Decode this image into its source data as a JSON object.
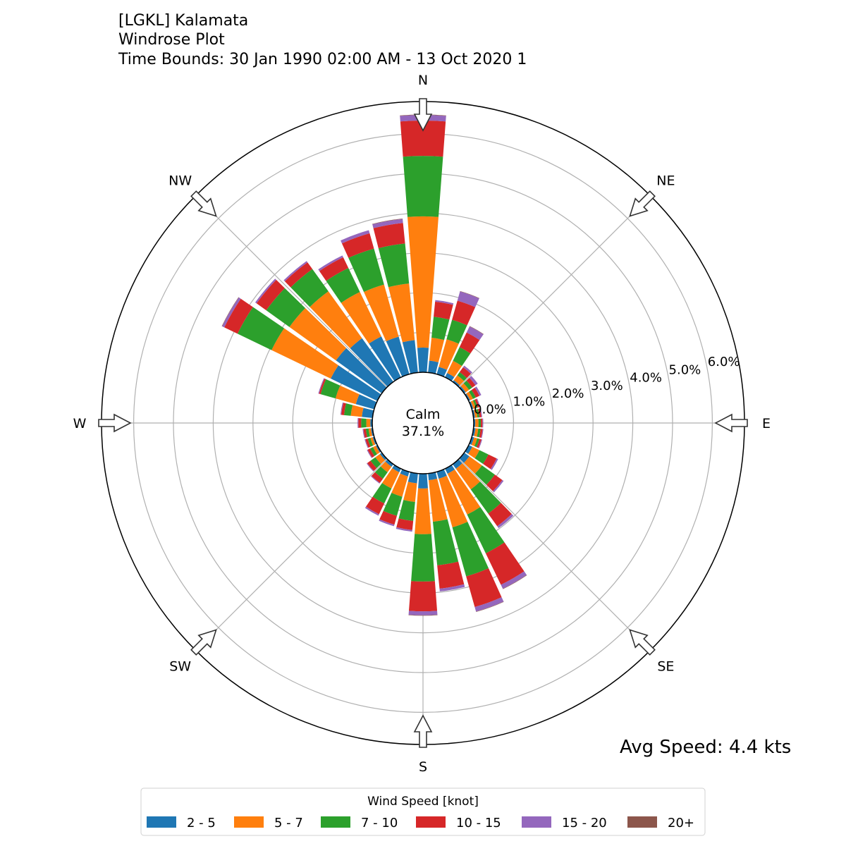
{
  "title": {
    "line1": "[LGKL] Kalamata",
    "line2": "Windrose Plot",
    "line3": "Time Bounds: 30 Jan 1990 02:00 AM - 13 Oct 2020 1"
  },
  "chart_data": {
    "type": "windrose",
    "title": "[LGKL] Kalamata Windrose Plot",
    "directions_deg": [
      0,
      10,
      20,
      30,
      40,
      50,
      60,
      70,
      80,
      90,
      100,
      110,
      120,
      130,
      140,
      150,
      160,
      170,
      180,
      190,
      200,
      210,
      220,
      230,
      240,
      250,
      260,
      270,
      280,
      290,
      300,
      310,
      320,
      330,
      340,
      350
    ],
    "direction_labels": [
      "N",
      "NE",
      "E",
      "SE",
      "S",
      "SW",
      "W",
      "NW"
    ],
    "radial_ticks": [
      "0.0%",
      "1.0%",
      "2.0%",
      "3.0%",
      "4.0%",
      "5.0%",
      "6.0%"
    ],
    "rlim": [
      0,
      6.5
    ],
    "units": "percent of observations",
    "calm_label": "Calm",
    "calm_value": "37.1%",
    "avg_speed": "Avg Speed: 4.4 kts",
    "legend_title": "Wind Speed [knot]",
    "legend_placement": "bottom-center",
    "series": [
      {
        "name": "2 - 5",
        "color": "#1f77b4",
        "values": [
          0.62,
          0.3,
          0.19,
          0.12,
          0.05,
          0.05,
          0.04,
          0.04,
          0.04,
          0.04,
          0.05,
          0.06,
          0.1,
          0.16,
          0.14,
          0.14,
          0.18,
          0.17,
          0.37,
          0.25,
          0.12,
          0.1,
          0.08,
          0.06,
          0.04,
          0.04,
          0.04,
          0.05,
          0.27,
          0.48,
          1.3,
          1.42,
          1.35,
          1.14,
          0.98,
          0.82
        ]
      },
      {
        "name": "5 - 7",
        "color": "#ff7f0e",
        "values": [
          3.3,
          0.58,
          0.72,
          0.34,
          0.15,
          0.1,
          0.08,
          0.06,
          0.06,
          0.08,
          0.07,
          0.08,
          0.2,
          0.39,
          0.64,
          1.14,
          1.27,
          1.05,
          1.15,
          0.47,
          0.53,
          0.45,
          0.17,
          0.14,
          0.08,
          0.06,
          0.06,
          0.1,
          0.28,
          0.53,
          1.65,
          1.44,
          1.45,
          1.24,
          1.36,
          1.43
        ]
      },
      {
        "name": "7 - 10",
        "color": "#2ca02c",
        "values": [
          1.52,
          0.53,
          0.51,
          0.38,
          0.1,
          0.1,
          0.08,
          0.05,
          0.05,
          0.06,
          0.06,
          0.06,
          0.25,
          0.4,
          0.75,
          1.08,
          1.28,
          1.1,
          1.19,
          0.48,
          0.5,
          0.42,
          0.2,
          0.15,
          0.08,
          0.07,
          0.07,
          0.13,
          0.17,
          0.39,
          0.95,
          0.72,
          0.69,
          0.67,
          0.94,
          1.01
        ]
      },
      {
        "name": "10 - 15",
        "color": "#d62728",
        "values": [
          0.89,
          0.38,
          0.5,
          0.41,
          0.15,
          0.1,
          0.1,
          0.05,
          0.05,
          0.04,
          0.05,
          0.05,
          0.23,
          0.23,
          0.39,
          0.88,
          0.8,
          0.59,
          0.75,
          0.23,
          0.23,
          0.3,
          0.13,
          0.1,
          0.07,
          0.06,
          0.06,
          0.07,
          0.07,
          0.04,
          0.37,
          0.3,
          0.21,
          0.3,
          0.4,
          0.52
        ]
      },
      {
        "name": "15 - 20",
        "color": "#9467bd",
        "values": [
          0.14,
          0.04,
          0.24,
          0.17,
          0.05,
          0.07,
          0.05,
          0.02,
          0.02,
          0.02,
          0.02,
          0.02,
          0.04,
          0.04,
          0.06,
          0.11,
          0.12,
          0.07,
          0.1,
          0.04,
          0.04,
          0.04,
          0.02,
          0.02,
          0.02,
          0.02,
          0.02,
          0.02,
          0.02,
          0.02,
          0.06,
          0.04,
          0.04,
          0.05,
          0.08,
          0.1
        ]
      },
      {
        "name": "20+",
        "color": "#8c564b",
        "values": [
          0.01,
          0,
          0.01,
          0.01,
          0,
          0,
          0,
          0,
          0,
          0,
          0,
          0,
          0,
          0,
          0,
          0.01,
          0.01,
          0,
          0.01,
          0,
          0,
          0,
          0,
          0,
          0,
          0,
          0,
          0,
          0,
          0,
          0.01,
          0,
          0,
          0,
          0,
          0.01
        ]
      }
    ]
  }
}
